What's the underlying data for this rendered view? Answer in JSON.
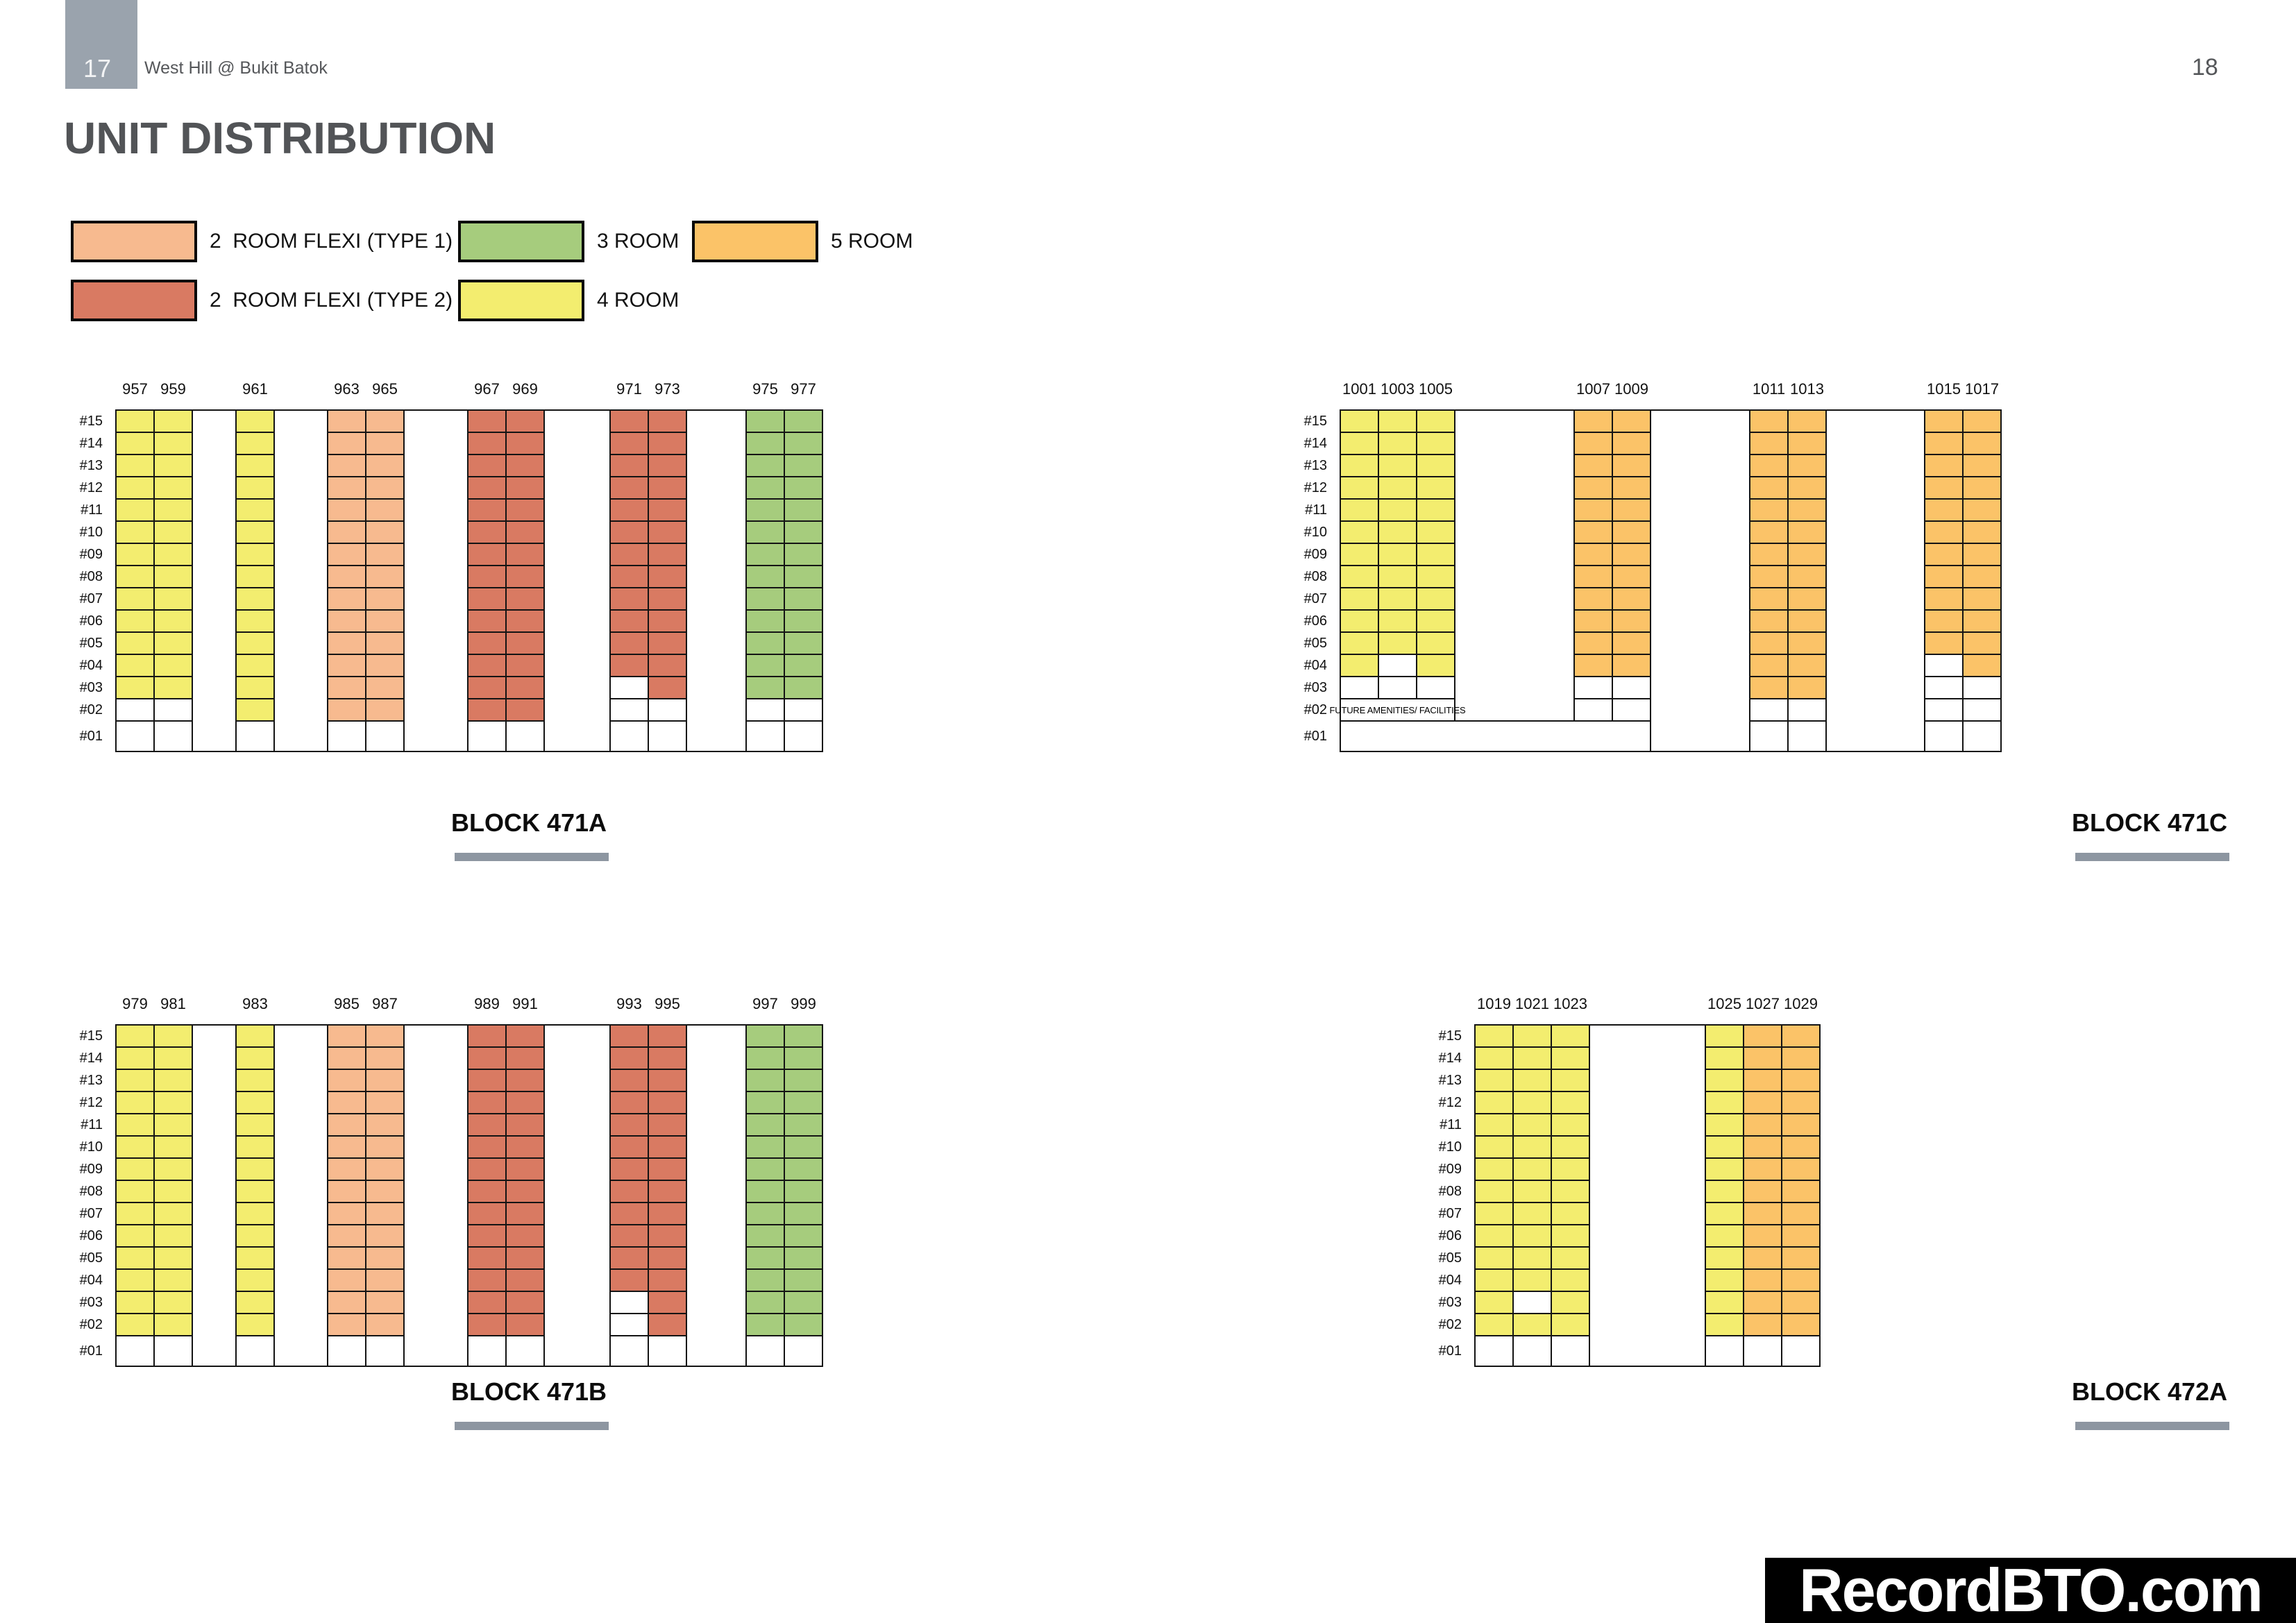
{
  "page": {
    "page_number_left": "17",
    "page_number_right": "18",
    "project_name": "West Hill @ Bukit Batok",
    "title": "UNIT DISTRIBUTION",
    "watermark": "RecordBTO.com"
  },
  "legend": {
    "items": [
      {
        "key": "2R1",
        "label": "2  ROOM FLEXI (TYPE 1)",
        "color": "#F7BA8F"
      },
      {
        "key": "2R2",
        "label": "2  ROOM FLEXI (TYPE 2)",
        "color": "#D97A62"
      },
      {
        "key": "3R",
        "label": "3 ROOM",
        "color": "#A6CC7D"
      },
      {
        "key": "4R",
        "label": "4 ROOM",
        "color": "#F3ED6F"
      },
      {
        "key": "5R",
        "label": "5 ROOM",
        "color": "#FBC368"
      }
    ],
    "white_means": "no unit / void",
    "white_color": "#FFFFFF"
  },
  "chart_data": {
    "type": "heatmap",
    "title": "UNIT DISTRIBUTION",
    "floors_top_to_bottom": [
      "#15",
      "#14",
      "#13",
      "#12",
      "#11",
      "#10",
      "#09",
      "#08",
      "#07",
      "#06",
      "#05",
      "#04",
      "#03",
      "#02",
      "#01"
    ],
    "cell_codes": {
      "2R1": "2 ROOM FLEXI (TYPE 1)",
      "2R2": "2 ROOM FLEXI (TYPE 2)",
      "3R": "3 ROOM",
      "4R": "4 ROOM",
      "5R": "5 ROOM",
      "W": "empty white cell",
      "X": "no cell"
    },
    "blocks": [
      {
        "name": "BLOCK 471A",
        "groups": [
          {
            "stacks": [
              {
                "id": "957",
                "cells": [
                  [
                    "4R",
                    13
                  ],
                  [
                    "W",
                    2
                  ]
                ]
              },
              {
                "id": "959",
                "cells": [
                  [
                    "4R",
                    13
                  ],
                  [
                    "W",
                    2
                  ]
                ]
              }
            ]
          },
          {
            "stacks": [
              {
                "id": "961",
                "cells": [
                  [
                    "4R",
                    14
                  ],
                  [
                    "W",
                    1
                  ]
                ]
              }
            ]
          },
          {
            "stacks": [
              {
                "id": "963",
                "cells": [
                  [
                    "2R1",
                    14
                  ],
                  [
                    "W",
                    1
                  ]
                ]
              },
              {
                "id": "965",
                "cells": [
                  [
                    "2R1",
                    14
                  ],
                  [
                    "W",
                    1
                  ]
                ]
              }
            ]
          },
          {
            "stacks": [
              {
                "id": "967",
                "cells": [
                  [
                    "2R2",
                    14
                  ],
                  [
                    "W",
                    1
                  ]
                ]
              },
              {
                "id": "969",
                "cells": [
                  [
                    "2R2",
                    14
                  ],
                  [
                    "W",
                    1
                  ]
                ]
              }
            ]
          },
          {
            "stacks": [
              {
                "id": "971",
                "cells": [
                  [
                    "2R2",
                    12
                  ],
                  [
                    "W",
                    3
                  ]
                ]
              },
              {
                "id": "973",
                "cells": [
                  [
                    "2R2",
                    13
                  ],
                  [
                    "W",
                    2
                  ]
                ]
              }
            ]
          },
          {
            "stacks": [
              {
                "id": "975",
                "cells": [
                  [
                    "3R",
                    13
                  ],
                  [
                    "W",
                    2
                  ]
                ]
              },
              {
                "id": "977",
                "cells": [
                  [
                    "3R",
                    13
                  ],
                  [
                    "W",
                    2
                  ]
                ]
              }
            ]
          }
        ]
      },
      {
        "name": "BLOCK 471C",
        "note": "FUTURE AMENITIES/ FACILITIES",
        "note_floor": "#02",
        "groups": [
          {
            "stacks": [
              {
                "id": "1001",
                "cells": [
                  [
                    "4R",
                    12
                  ],
                  [
                    "W",
                    1
                  ],
                  [
                    "X",
                    2
                  ]
                ]
              },
              {
                "id": "1003",
                "cells": [
                  [
                    "4R",
                    11
                  ],
                  [
                    "W",
                    2
                  ],
                  [
                    "X",
                    2
                  ]
                ]
              },
              {
                "id": "1005",
                "cells": [
                  [
                    "4R",
                    12
                  ],
                  [
                    "W",
                    1
                  ],
                  [
                    "X",
                    2
                  ]
                ]
              }
            ]
          },
          {
            "stacks": [
              {
                "id": "1007",
                "cells": [
                  [
                    "5R",
                    12
                  ],
                  [
                    "W",
                    2
                  ],
                  [
                    "X",
                    1
                  ]
                ]
              },
              {
                "id": "1009",
                "cells": [
                  [
                    "5R",
                    12
                  ],
                  [
                    "W",
                    2
                  ],
                  [
                    "X",
                    1
                  ]
                ]
              }
            ]
          },
          {
            "stacks": [
              {
                "id": "1011",
                "cells": [
                  [
                    "5R",
                    13
                  ],
                  [
                    "W",
                    2
                  ]
                ]
              },
              {
                "id": "1013",
                "cells": [
                  [
                    "5R",
                    13
                  ],
                  [
                    "W",
                    2
                  ]
                ]
              }
            ]
          },
          {
            "stacks": [
              {
                "id": "1015",
                "cells": [
                  [
                    "5R",
                    11
                  ],
                  [
                    "W",
                    4
                  ]
                ]
              },
              {
                "id": "1017",
                "cells": [
                  [
                    "5R",
                    12
                  ],
                  [
                    "W",
                    3
                  ]
                ]
              }
            ]
          }
        ]
      },
      {
        "name": "BLOCK 471B",
        "groups": [
          {
            "stacks": [
              {
                "id": "979",
                "cells": [
                  [
                    "4R",
                    14
                  ],
                  [
                    "W",
                    1
                  ]
                ]
              },
              {
                "id": "981",
                "cells": [
                  [
                    "4R",
                    14
                  ],
                  [
                    "W",
                    1
                  ]
                ]
              }
            ]
          },
          {
            "stacks": [
              {
                "id": "983",
                "cells": [
                  [
                    "4R",
                    14
                  ],
                  [
                    "W",
                    1
                  ]
                ]
              }
            ]
          },
          {
            "stacks": [
              {
                "id": "985",
                "cells": [
                  [
                    "2R1",
                    14
                  ],
                  [
                    "W",
                    1
                  ]
                ]
              },
              {
                "id": "987",
                "cells": [
                  [
                    "2R1",
                    14
                  ],
                  [
                    "W",
                    1
                  ]
                ]
              }
            ]
          },
          {
            "stacks": [
              {
                "id": "989",
                "cells": [
                  [
                    "2R2",
                    14
                  ],
                  [
                    "W",
                    1
                  ]
                ]
              },
              {
                "id": "991",
                "cells": [
                  [
                    "2R2",
                    14
                  ],
                  [
                    "W",
                    1
                  ]
                ]
              }
            ]
          },
          {
            "stacks": [
              {
                "id": "993",
                "cells": [
                  [
                    "2R2",
                    12
                  ],
                  [
                    "W",
                    3
                  ]
                ]
              },
              {
                "id": "995",
                "cells": [
                  [
                    "2R2",
                    14
                  ],
                  [
                    "W",
                    1
                  ]
                ]
              }
            ]
          },
          {
            "stacks": [
              {
                "id": "997",
                "cells": [
                  [
                    "3R",
                    14
                  ],
                  [
                    "W",
                    1
                  ]
                ]
              },
              {
                "id": "999",
                "cells": [
                  [
                    "3R",
                    14
                  ],
                  [
                    "W",
                    1
                  ]
                ]
              }
            ]
          }
        ]
      },
      {
        "name": "BLOCK 472A",
        "groups": [
          {
            "stacks": [
              {
                "id": "1019",
                "cells": [
                  [
                    "4R",
                    14
                  ],
                  [
                    "W",
                    1
                  ]
                ]
              },
              {
                "id": "1021",
                "cells": [
                  [
                    "4R",
                    12
                  ],
                  [
                    "W",
                    1
                  ],
                  [
                    "4R",
                    1
                  ],
                  [
                    "W",
                    1
                  ]
                ]
              },
              {
                "id": "1023",
                "cells": [
                  [
                    "4R",
                    14
                  ],
                  [
                    "W",
                    1
                  ]
                ]
              }
            ]
          },
          {
            "stacks": [
              {
                "id": "1025",
                "cells": [
                  [
                    "4R",
                    14
                  ],
                  [
                    "W",
                    1
                  ]
                ]
              },
              {
                "id": "1027",
                "cells": [
                  [
                    "5R",
                    14
                  ],
                  [
                    "W",
                    1
                  ]
                ]
              },
              {
                "id": "1029",
                "cells": [
                  [
                    "5R",
                    14
                  ],
                  [
                    "W",
                    1
                  ]
                ]
              }
            ]
          }
        ]
      }
    ]
  }
}
